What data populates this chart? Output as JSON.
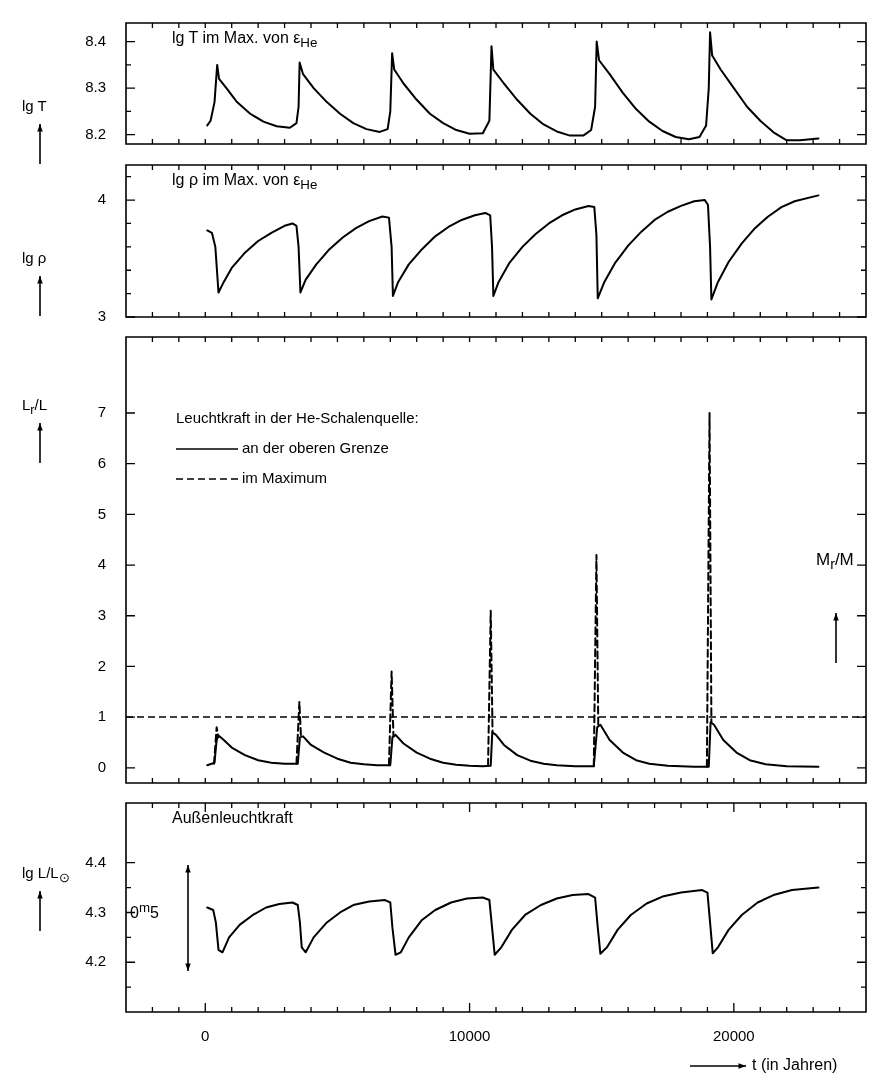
{
  "chart_data": [
    {
      "type": "line",
      "title": "lg T im Max. von ε$_{He}$",
      "ylabel": "lg T",
      "color": "#000000",
      "x": [
        75,
        200,
        350,
        450,
        520,
        800,
        1200,
        1700,
        2200,
        2700,
        3200,
        3450,
        3530,
        3570,
        3700,
        4100,
        4600,
        5100,
        5600,
        6100,
        6600,
        6900,
        7000,
        7070,
        7150,
        7500,
        8000,
        8500,
        9000,
        9500,
        10000,
        10500,
        10750,
        10830,
        10900,
        11300,
        11800,
        12300,
        12800,
        13300,
        13800,
        14300,
        14600,
        14750,
        14810,
        14900,
        15300,
        15800,
        16300,
        16800,
        17300,
        17800,
        18300,
        18700,
        18950,
        19050,
        19100,
        19180,
        19500,
        20000,
        20500,
        21000,
        21500,
        22000,
        22500,
        23200
      ],
      "values": [
        8.22,
        8.23,
        8.27,
        8.35,
        8.32,
        8.3,
        8.27,
        8.245,
        8.228,
        8.218,
        8.215,
        8.225,
        8.26,
        8.355,
        8.33,
        8.3,
        8.27,
        8.245,
        8.225,
        8.212,
        8.206,
        8.212,
        8.25,
        8.375,
        8.34,
        8.31,
        8.275,
        8.245,
        8.225,
        8.21,
        8.202,
        8.203,
        8.23,
        8.39,
        8.34,
        8.31,
        8.275,
        8.245,
        8.222,
        8.207,
        8.198,
        8.198,
        8.21,
        8.26,
        8.4,
        8.36,
        8.33,
        8.29,
        8.255,
        8.228,
        8.208,
        8.195,
        8.19,
        8.195,
        8.22,
        8.3,
        8.42,
        8.37,
        8.34,
        8.3,
        8.26,
        8.23,
        8.205,
        8.188,
        8.188,
        8.192
      ],
      "xlim": [
        -3000,
        25000
      ],
      "xticks": [
        {
          "value": -2000,
          "label": null
        },
        {
          "value": -1000,
          "label": null
        },
        {
          "value": 0,
          "label": null
        },
        {
          "value": 1000,
          "label": null
        },
        {
          "value": 2000,
          "label": null
        },
        {
          "value": 3000,
          "label": null
        },
        {
          "value": 4000,
          "label": null
        },
        {
          "value": 5000,
          "label": null
        },
        {
          "value": 6000,
          "label": null
        },
        {
          "value": 7000,
          "label": null
        },
        {
          "value": 8000,
          "label": null
        },
        {
          "value": 9000,
          "label": null
        },
        {
          "value": 10000,
          "label": null
        },
        {
          "value": 11000,
          "label": null
        },
        {
          "value": 12000,
          "label": null
        },
        {
          "value": 13000,
          "label": null
        },
        {
          "value": 14000,
          "label": null
        },
        {
          "value": 15000,
          "label": null
        },
        {
          "value": 16000,
          "label": null
        },
        {
          "value": 17000,
          "label": null
        },
        {
          "value": 18000,
          "label": null
        },
        {
          "value": 19000,
          "label": null
        },
        {
          "value": 20000,
          "label": null
        },
        {
          "value": 21000,
          "label": null
        },
        {
          "value": 22000,
          "label": null
        },
        {
          "value": 23000,
          "label": null
        },
        {
          "value": 24000,
          "label": null
        }
      ],
      "ylim": [
        8.18,
        8.44
      ],
      "yticks": [
        8.2,
        {
          "value": 8.25,
          "label": null
        },
        8.3,
        {
          "value": 8.35,
          "label": null
        },
        8.4
      ],
      "tick_labels": "y"
    },
    {
      "type": "line",
      "title": "lg ρ im Max. von ε$_{He}$",
      "ylabel": "lg ρ",
      "color": "#000000",
      "x": [
        75,
        250,
        380,
        500,
        700,
        1000,
        1500,
        2000,
        2500,
        3000,
        3300,
        3450,
        3530,
        3600,
        3800,
        4200,
        4700,
        5200,
        5700,
        6200,
        6700,
        6950,
        7050,
        7100,
        7300,
        7700,
        8200,
        8700,
        9200,
        9700,
        10200,
        10600,
        10780,
        10850,
        10900,
        11100,
        11500,
        12000,
        12500,
        13000,
        13500,
        14000,
        14500,
        14720,
        14800,
        14850,
        15100,
        15500,
        16000,
        16500,
        17000,
        17500,
        18000,
        18500,
        18900,
        19020,
        19100,
        19150,
        19400,
        19800,
        20300,
        20800,
        21300,
        21800,
        22300,
        23200
      ],
      "values": [
        3.74,
        3.72,
        3.6,
        3.21,
        3.3,
        3.42,
        3.55,
        3.65,
        3.72,
        3.78,
        3.8,
        3.78,
        3.6,
        3.21,
        3.32,
        3.45,
        3.58,
        3.68,
        3.76,
        3.82,
        3.86,
        3.85,
        3.6,
        3.18,
        3.3,
        3.45,
        3.58,
        3.69,
        3.77,
        3.83,
        3.87,
        3.89,
        3.87,
        3.6,
        3.18,
        3.3,
        3.46,
        3.6,
        3.71,
        3.8,
        3.87,
        3.92,
        3.95,
        3.94,
        3.7,
        3.16,
        3.3,
        3.46,
        3.61,
        3.73,
        3.83,
        3.9,
        3.95,
        3.99,
        4.0,
        3.96,
        3.6,
        3.15,
        3.3,
        3.47,
        3.63,
        3.76,
        3.86,
        3.94,
        3.99,
        4.04
      ],
      "xlim": [
        -3000,
        25000
      ],
      "xticks": [
        {
          "value": -2000,
          "label": null
        },
        {
          "value": -1000,
          "label": null
        },
        {
          "value": 0,
          "label": null
        },
        {
          "value": 1000,
          "label": null
        },
        {
          "value": 2000,
          "label": null
        },
        {
          "value": 3000,
          "label": null
        },
        {
          "value": 4000,
          "label": null
        },
        {
          "value": 5000,
          "label": null
        },
        {
          "value": 6000,
          "label": null
        },
        {
          "value": 7000,
          "label": null
        },
        {
          "value": 8000,
          "label": null
        },
        {
          "value": 9000,
          "label": null
        },
        {
          "value": 10000,
          "label": null
        },
        {
          "value": 11000,
          "label": null
        },
        {
          "value": 12000,
          "label": null
        },
        {
          "value": 13000,
          "label": null
        },
        {
          "value": 14000,
          "label": null
        },
        {
          "value": 15000,
          "label": null
        },
        {
          "value": 16000,
          "label": null
        },
        {
          "value": 17000,
          "label": null
        },
        {
          "value": 18000,
          "label": null
        },
        {
          "value": 19000,
          "label": null
        },
        {
          "value": 20000,
          "label": null
        },
        {
          "value": 21000,
          "label": null
        },
        {
          "value": 22000,
          "label": null
        },
        {
          "value": 23000,
          "label": null
        },
        {
          "value": 24000,
          "label": null
        }
      ],
      "ylim": [
        3,
        4.3
      ],
      "yticks": [
        3,
        {
          "value": 3.2,
          "label": null
        },
        {
          "value": 3.4,
          "label": null
        },
        {
          "value": 3.6,
          "label": null
        },
        {
          "value": 3.8,
          "label": null
        },
        4,
        {
          "value": 4.2,
          "label": null
        }
      ],
      "tick_labels": "y"
    },
    {
      "type": "line",
      "ylabel": "L$_{r}$/L",
      "legend": "top left",
      "legend_title": "Leuchtkraft in der He-Schalenquelle:",
      "series": [
        {
          "name": "an der oberen Grenze",
          "color": "#000000",
          "line_style": "solid",
          "x": [
            75,
            350,
            420,
            470,
            700,
            1000,
            1500,
            2000,
            2500,
            3000,
            3500,
            3580,
            3700,
            4000,
            4500,
            5000,
            5500,
            6000,
            6500,
            7000,
            7080,
            7200,
            7500,
            8000,
            8500,
            9000,
            9500,
            10000,
            10500,
            10800,
            10860,
            11000,
            11300,
            11800,
            12300,
            12800,
            13300,
            14000,
            14700,
            14830,
            14950,
            15300,
            15800,
            16300,
            16800,
            17500,
            18500,
            19050,
            19120,
            19250,
            19600,
            20100,
            20600,
            21200,
            22000,
            23200
          ],
          "values": [
            0.05,
            0.1,
            0.5,
            0.65,
            0.55,
            0.4,
            0.25,
            0.15,
            0.1,
            0.08,
            0.08,
            0.6,
            0.62,
            0.45,
            0.3,
            0.18,
            0.1,
            0.07,
            0.05,
            0.05,
            0.6,
            0.65,
            0.48,
            0.3,
            0.18,
            0.1,
            0.06,
            0.04,
            0.03,
            0.04,
            0.7,
            0.65,
            0.45,
            0.25,
            0.14,
            0.08,
            0.05,
            0.03,
            0.03,
            0.8,
            0.85,
            0.55,
            0.3,
            0.15,
            0.08,
            0.04,
            0.02,
            0.02,
            0.9,
            0.85,
            0.55,
            0.3,
            0.15,
            0.07,
            0.03,
            0.02
          ]
        },
        {
          "name": "im Maximum",
          "color": "#000000",
          "line_style": "dashed",
          "x": [
            330,
            430,
            500,
            2000,
            3450,
            3560,
            3620,
            5000,
            6950,
            7050,
            7120,
            9000,
            10700,
            10800,
            10870,
            13000,
            14700,
            14800,
            14870,
            17000,
            18980,
            19080,
            19150
          ],
          "values": [
            0.08,
            0.8,
            0.6,
            null,
            0.08,
            1.3,
            0.62,
            null,
            0.05,
            1.9,
            0.62,
            null,
            0.04,
            3.1,
            0.68,
            null,
            0.03,
            4.2,
            0.82,
            null,
            0.02,
            7.0,
            0.9
          ]
        }
      ],
      "y2label": "M$_{r}$/M",
      "ref_lines": [
        {
          "axis": "y",
          "value": 1,
          "line_style": "dashed"
        }
      ],
      "xlim": [
        -3000,
        25000
      ],
      "xticks": [
        {
          "value": -2000,
          "label": null
        },
        {
          "value": -1000,
          "label": null
        },
        {
          "value": 0,
          "label": null
        },
        {
          "value": 1000,
          "label": null
        },
        {
          "value": 2000,
          "label": null
        },
        {
          "value": 3000,
          "label": null
        },
        {
          "value": 4000,
          "label": null
        },
        {
          "value": 5000,
          "label": null
        },
        {
          "value": 6000,
          "label": null
        },
        {
          "value": 7000,
          "label": null
        },
        {
          "value": 8000,
          "label": null
        },
        {
          "value": 9000,
          "label": null
        },
        {
          "value": 10000,
          "label": null
        },
        {
          "value": 11000,
          "label": null
        },
        {
          "value": 12000,
          "label": null
        },
        {
          "value": 13000,
          "label": null
        },
        {
          "value": 14000,
          "label": null
        },
        {
          "value": 15000,
          "label": null
        },
        {
          "value": 16000,
          "label": null
        },
        {
          "value": 17000,
          "label": null
        },
        {
          "value": 18000,
          "label": null
        },
        {
          "value": 19000,
          "label": null
        },
        {
          "value": 20000,
          "label": null
        },
        {
          "value": 21000,
          "label": null
        },
        {
          "value": 22000,
          "label": null
        },
        {
          "value": 23000,
          "label": null
        },
        {
          "value": 24000,
          "label": null
        }
      ],
      "ylim": [
        -0.3,
        8.5
      ],
      "yticks": [
        0,
        1,
        2,
        3,
        4,
        5,
        6,
        7
      ],
      "tick_labels": "y"
    },
    {
      "type": "line",
      "title": "Außenleuchtkraft",
      "ylabel": "lg L/L$_{⊙}$",
      "xlabel": "t (in Jahren)",
      "color": "#000000",
      "annotations": [
        "0$^{m}$5"
      ],
      "x": [
        75,
        300,
        400,
        500,
        650,
        900,
        1300,
        1800,
        2300,
        2800,
        3300,
        3500,
        3580,
        3650,
        3800,
        4100,
        4600,
        5100,
        5600,
        6200,
        6800,
        7000,
        7080,
        7200,
        7400,
        7700,
        8200,
        8700,
        9300,
        9900,
        10500,
        10750,
        10850,
        10950,
        11200,
        11600,
        12100,
        12700,
        13300,
        13900,
        14500,
        14750,
        14850,
        14950,
        15200,
        15600,
        16100,
        16700,
        17300,
        18000,
        18800,
        19000,
        19100,
        19200,
        19400,
        19800,
        20300,
        20900,
        21500,
        22200,
        23200
      ],
      "values": [
        4.31,
        4.305,
        4.28,
        4.225,
        4.22,
        4.25,
        4.275,
        4.295,
        4.31,
        4.317,
        4.32,
        4.315,
        4.28,
        4.23,
        4.22,
        4.25,
        4.28,
        4.3,
        4.315,
        4.322,
        4.325,
        4.32,
        4.27,
        4.215,
        4.22,
        4.25,
        4.285,
        4.305,
        4.32,
        4.328,
        4.33,
        4.325,
        4.27,
        4.215,
        4.23,
        4.265,
        4.295,
        4.315,
        4.328,
        4.335,
        4.337,
        4.33,
        4.27,
        4.217,
        4.23,
        4.265,
        4.295,
        4.318,
        4.332,
        4.34,
        4.345,
        4.34,
        4.28,
        4.218,
        4.23,
        4.265,
        4.295,
        4.32,
        4.335,
        4.345,
        4.35
      ],
      "xlim": [
        -3000,
        25000
      ],
      "xticks": [
        {
          "value": -2000,
          "label": null
        },
        {
          "value": -1000,
          "label": null
        },
        0,
        {
          "value": 1000,
          "label": null
        },
        {
          "value": 2000,
          "label": null
        },
        {
          "value": 3000,
          "label": null
        },
        {
          "value": 4000,
          "label": null
        },
        {
          "value": 5000,
          "label": null
        },
        {
          "value": 6000,
          "label": null
        },
        {
          "value": 7000,
          "label": null
        },
        {
          "value": 8000,
          "label": null
        },
        {
          "value": 9000,
          "label": null
        },
        10000,
        {
          "value": 11000,
          "label": null
        },
        {
          "value": 12000,
          "label": null
        },
        {
          "value": 13000,
          "label": null
        },
        {
          "value": 14000,
          "label": null
        },
        {
          "value": 15000,
          "label": null
        },
        {
          "value": 16000,
          "label": null
        },
        {
          "value": 17000,
          "label": null
        },
        {
          "value": 18000,
          "label": null
        },
        {
          "value": 19000,
          "label": null
        },
        20000,
        {
          "value": 21000,
          "label": null
        },
        {
          "value": 22000,
          "label": null
        },
        {
          "value": 23000,
          "label": null
        },
        {
          "value": 24000,
          "label": null
        }
      ],
      "ylim": [
        4.1,
        4.52
      ],
      "yticks": [
        {
          "value": 4.15,
          "label": null
        },
        4.2,
        {
          "value": 4.25,
          "label": null
        },
        4.3,
        {
          "value": 4.35,
          "label": null
        },
        4.4
      ]
    }
  ]
}
